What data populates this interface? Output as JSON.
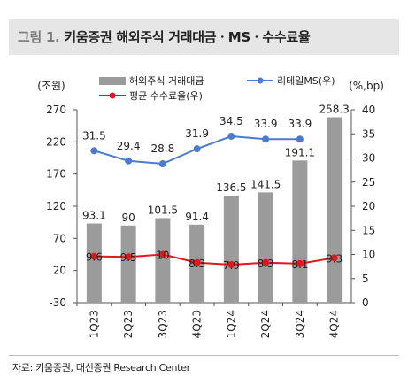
{
  "header": {
    "figure_label": "그림 1.",
    "title": "키움증권 해외주식 거래대금ㆍMSㆍ수수료율"
  },
  "source_note": "자료: 키움증권, 대신증권 Research Center",
  "colors": {
    "bars": "#9b9b9b",
    "market_share": "#4a7bd0",
    "fee_rate": "#e8141b",
    "title_bg": "#e6e6e6"
  },
  "chart_data": {
    "type": "bar",
    "categories": [
      "1Q23",
      "2Q23",
      "3Q23",
      "4Q23",
      "1Q24",
      "2Q24",
      "3Q24",
      "4Q24"
    ],
    "left_axis": {
      "unit_label": "(조원)",
      "ylim": [
        -30,
        270
      ],
      "ticks": [
        -30,
        20,
        70,
        120,
        170,
        220,
        270
      ]
    },
    "right_axis": {
      "unit_label": "(%,bp)",
      "ylim": [
        0,
        40
      ],
      "ticks": [
        0,
        5,
        10,
        15,
        20,
        25,
        30,
        35,
        40
      ]
    },
    "series": [
      {
        "name": "해외주식 거래대금",
        "kind": "bar",
        "axis": "left",
        "values": [
          93.1,
          90,
          101.5,
          91.4,
          136.5,
          141.5,
          191.1,
          258.3
        ],
        "labels": [
          "93.1",
          "90",
          "101.5",
          "91.4",
          "136.5",
          "141.5",
          "191.1",
          "258.3"
        ]
      },
      {
        "name": "리테일MS(우)",
        "kind": "line",
        "axis": "right",
        "values": [
          31.5,
          29.4,
          28.8,
          31.9,
          34.5,
          33.9,
          33.9,
          null
        ],
        "labels": [
          "31.5",
          "29.4",
          "28.8",
          "31.9",
          "34.5",
          "33.9",
          "33.9",
          ""
        ]
      },
      {
        "name": "평균 수수료율(우)",
        "kind": "line",
        "axis": "right",
        "values": [
          9.6,
          9.5,
          10,
          8.3,
          7.9,
          8.3,
          8.1,
          9.3
        ],
        "labels": [
          "9.6",
          "9.5",
          "10",
          "8.3",
          "7.9",
          "8.3",
          "8.1",
          "9.3"
        ]
      }
    ],
    "legend_position": "top",
    "grid": false
  }
}
